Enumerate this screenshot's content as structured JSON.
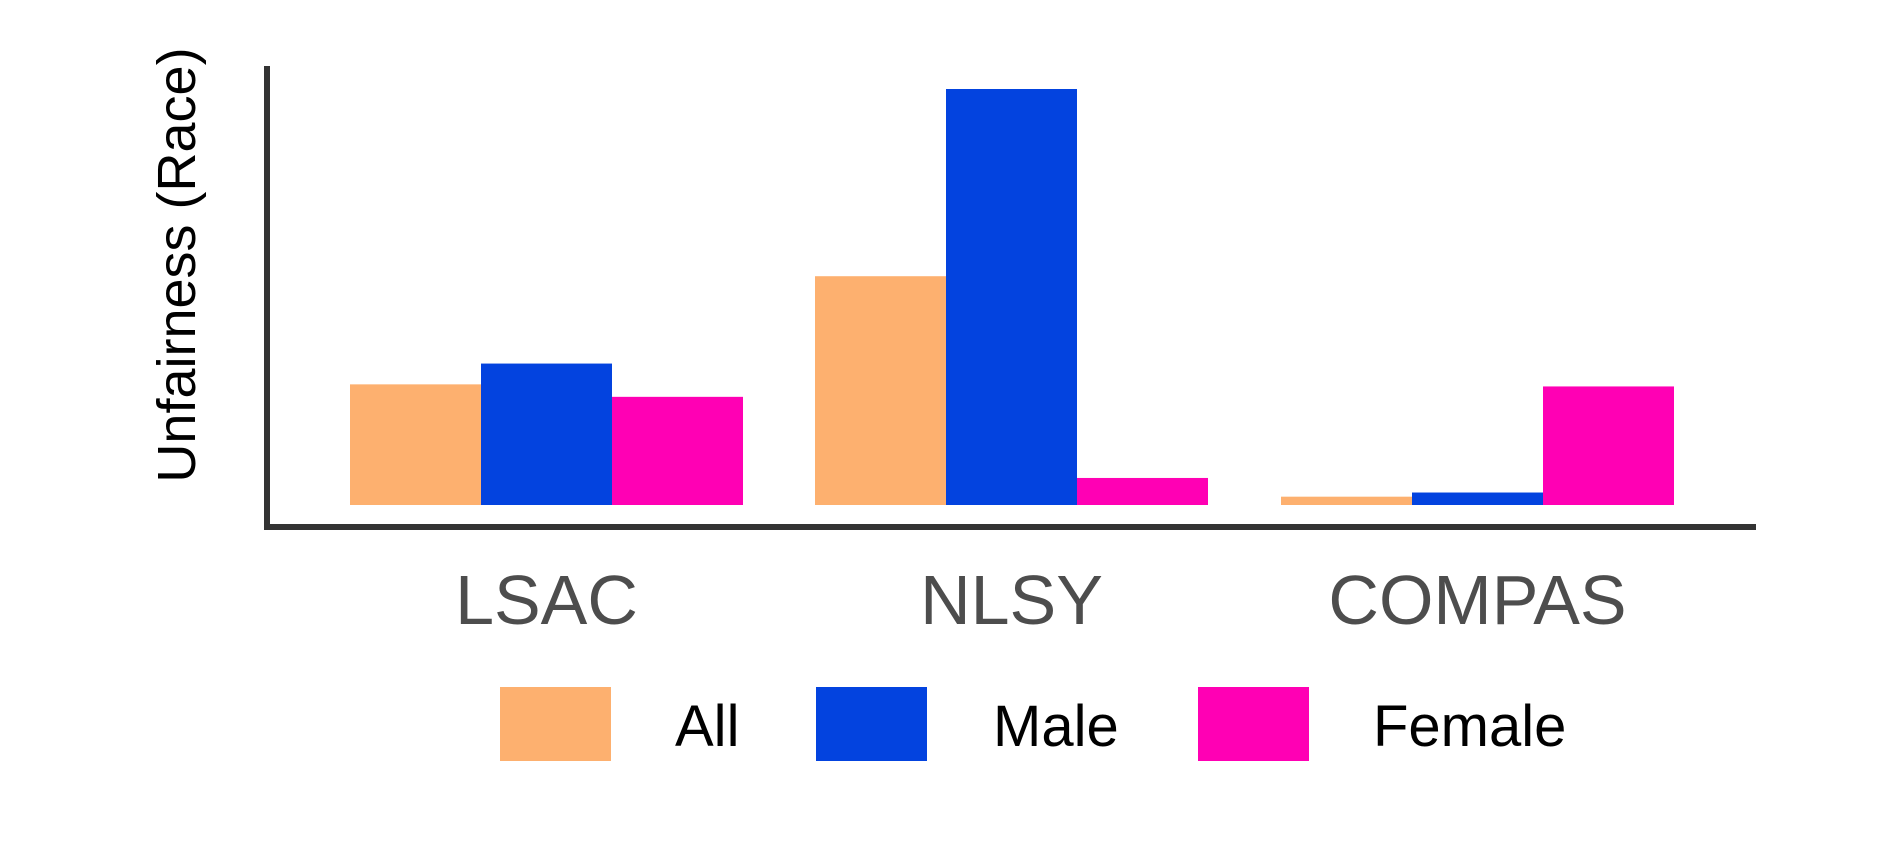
{
  "chart_data": {
    "type": "bar",
    "title": "",
    "xlabel": "",
    "ylabel": "Unfairness (Race)",
    "categories": [
      "LSAC",
      "NLSY",
      "COMPAS"
    ],
    "series": [
      {
        "name": "All",
        "color": "#FDB06F",
        "values": [
          0.29,
          0.55,
          0.02
        ]
      },
      {
        "name": "Male",
        "color": "#0343DF",
        "values": [
          0.34,
          1.0,
          0.03
        ]
      },
      {
        "name": "Female",
        "color": "#FF00B4",
        "values": [
          0.26,
          0.065,
          0.285
        ]
      }
    ],
    "ylim": [
      0,
      1.05
    ],
    "y_ticks_shown": false,
    "grid": false,
    "legend_position": "bottom"
  }
}
